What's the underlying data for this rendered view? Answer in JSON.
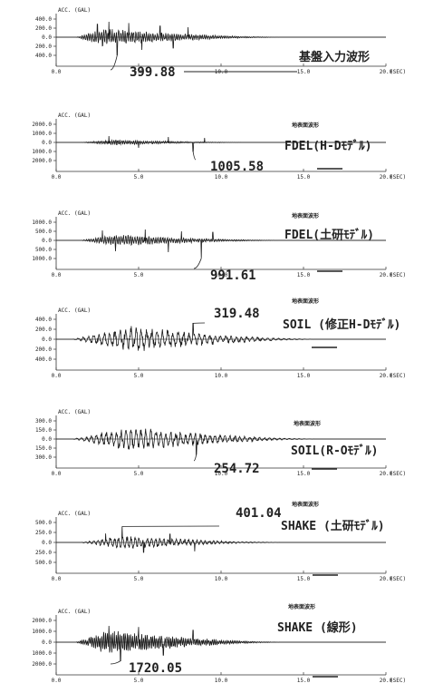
{
  "chart_data": [
    {
      "type": "line",
      "title": "基盤入力波形",
      "subtitle": "",
      "ylabel": "ACC. (GAL)",
      "xlabel": "(SEC)",
      "yticks": [
        "400.0",
        "200.0",
        "0.0",
        "200.0",
        "400.0"
      ],
      "ylim": [
        -400,
        400
      ],
      "xticks": [
        "0.0",
        "5.0",
        "10.0",
        "15.0",
        "20.0"
      ],
      "xlim": [
        0,
        20
      ],
      "peak_label": "399.88",
      "peak_time": 3.7,
      "peak_value": -399.88,
      "scale_bar": false,
      "envelope": {
        "start": 1.2,
        "peak": 2.8,
        "end": 14.0,
        "amp": 0.5,
        "period": 0.13
      },
      "spikes": [
        [
          2.5,
          0.72
        ],
        [
          3.2,
          0.85
        ],
        [
          3.7,
          -0.98
        ],
        [
          4.4,
          0.78
        ],
        [
          5.2,
          -0.7
        ],
        [
          6.3,
          0.62
        ],
        [
          7.1,
          -0.6
        ],
        [
          8.0,
          0.55
        ]
      ]
    },
    {
      "type": "line",
      "title": "FDEL(H-Dﾓﾃﾞﾙ)",
      "subtitle": "地表面波形",
      "ylabel": "ACC. (GAL)",
      "xlabel": "(SEC)",
      "yticks": [
        "2000.0",
        "1000.0",
        "0.0",
        "1000.0",
        "2000.0"
      ],
      "ylim": [
        -2000,
        2000
      ],
      "xticks": [
        "0.0",
        "5.0",
        "10.0",
        "15.0",
        "20.0"
      ],
      "xlim": [
        0,
        20
      ],
      "peak_label": "1005.58",
      "peak_time": 8.3,
      "peak_value": -1005.58,
      "scale_bar": true,
      "envelope": {
        "start": 1.5,
        "peak": 3.5,
        "end": 12.0,
        "amp": 0.15,
        "period": 0.12
      },
      "spikes": [
        [
          3.2,
          0.35
        ],
        [
          5.0,
          -0.3
        ],
        [
          6.8,
          0.3
        ],
        [
          8.3,
          -0.5
        ],
        [
          9.0,
          0.25
        ]
      ]
    },
    {
      "type": "line",
      "title": "FDEL(土研ﾓﾃﾞﾙ)",
      "subtitle": "地表面波形",
      "ylabel": "ACC. (GAL)",
      "xlabel": "(SEC)",
      "yticks": [
        "1000.0",
        "500.0",
        "0.0",
        "500.0",
        "1000.0"
      ],
      "ylim": [
        -1000,
        1000
      ],
      "xticks": [
        "0.0",
        "5.0",
        "10.0",
        "15.0",
        "20.0"
      ],
      "xlim": [
        0,
        20
      ],
      "peak_label": "991.61",
      "peak_time": 8.8,
      "peak_value": -991.61,
      "scale_bar": true,
      "envelope": {
        "start": 1.5,
        "peak": 3.5,
        "end": 14.0,
        "amp": 0.35,
        "period": 0.14
      },
      "spikes": [
        [
          2.8,
          0.55
        ],
        [
          3.6,
          -0.6
        ],
        [
          5.4,
          0.6
        ],
        [
          6.8,
          -0.65
        ],
        [
          7.6,
          0.5
        ],
        [
          8.8,
          -0.99
        ],
        [
          9.5,
          0.45
        ]
      ]
    },
    {
      "type": "line",
      "title": "SOIL (修正H-Dﾓﾃﾞﾙ)",
      "subtitle": "地表面波形",
      "ylabel": "ACC. (GAL)",
      "xlabel": "(SEC)",
      "yticks": [
        "400.0",
        "200.0",
        "0.0",
        "200.0",
        "400.0"
      ],
      "ylim": [
        -400,
        400
      ],
      "xticks": [
        "0.0",
        "5.0",
        "10.0",
        "15.0",
        "20.0"
      ],
      "xlim": [
        0,
        20
      ],
      "peak_label": "319.48",
      "peak_time": 8.3,
      "peak_value": 319.48,
      "scale_bar": true,
      "envelope": {
        "start": 1.0,
        "peak": 4.5,
        "end": 16.0,
        "amp": 0.68,
        "period": 0.32
      },
      "spikes": [
        [
          8.3,
          0.8
        ]
      ]
    },
    {
      "type": "line",
      "title": "SOIL(R-Oﾓﾃﾞﾙ)",
      "subtitle": "地表面波形",
      "ylabel": "ACC. (GAL)",
      "xlabel": "(SEC)",
      "yticks": [
        "300.0",
        "150.0",
        "0.0",
        "150.0",
        "300.0"
      ],
      "ylim": [
        -300,
        300
      ],
      "xticks": [
        "0.0",
        "5.0",
        "10.0",
        "15.0",
        "20.0"
      ],
      "xlim": [
        0,
        20
      ],
      "peak_label": "254.72",
      "peak_time": 8.5,
      "peak_value": -254.72,
      "scale_bar": true,
      "envelope": {
        "start": 1.0,
        "peak": 4.5,
        "end": 16.0,
        "amp": 0.68,
        "period": 0.3
      },
      "spikes": [
        [
          8.5,
          -0.85
        ]
      ]
    },
    {
      "type": "line",
      "title": "SHAKE (土研ﾓﾃﾞﾙ)",
      "subtitle": "地表面波形",
      "ylabel": "ACC. (GAL)",
      "xlabel": "(SEC)",
      "yticks": [
        "500.0",
        "250.0",
        "0.0",
        "250.0",
        "500.0"
      ],
      "ylim": [
        -500,
        500
      ],
      "xticks": [
        "0.0",
        "5.0",
        "10.0",
        "15.0",
        "20.0"
      ],
      "xlim": [
        0,
        20
      ],
      "peak_label": "401.04",
      "peak_time": 4.0,
      "peak_value": 401.04,
      "scale_bar": true,
      "envelope": {
        "start": 1.5,
        "peak": 4.0,
        "end": 14.0,
        "amp": 0.35,
        "period": 0.25
      },
      "spikes": [
        [
          3.0,
          0.45
        ],
        [
          4.0,
          0.8
        ],
        [
          5.3,
          -0.5
        ],
        [
          6.9,
          0.42
        ],
        [
          8.4,
          -0.45
        ]
      ]
    },
    {
      "type": "line",
      "title": "SHAKE (線形)",
      "subtitle": "地表面波形",
      "ylabel": "ACC. (GAL)",
      "xlabel": "(SEC)",
      "yticks": [
        "2000.0",
        "1000.0",
        "0.0",
        "1000.0",
        "2000.0"
      ],
      "ylim": [
        -2000,
        2000
      ],
      "xticks": [
        "0.0",
        "5.0",
        "10.0",
        "15.0",
        "20.0"
      ],
      "xlim": [
        0,
        20
      ],
      "peak_label": "1720.05",
      "peak_time": 3.9,
      "peak_value": -1720.05,
      "scale_bar": true,
      "envelope": {
        "start": 1.2,
        "peak": 3.2,
        "end": 14.0,
        "amp": 0.6,
        "period": 0.11
      },
      "spikes": [
        [
          3.2,
          0.75
        ],
        [
          3.9,
          -0.86
        ],
        [
          5.0,
          0.7
        ],
        [
          6.5,
          -0.6
        ],
        [
          8.3,
          0.55
        ]
      ]
    }
  ]
}
